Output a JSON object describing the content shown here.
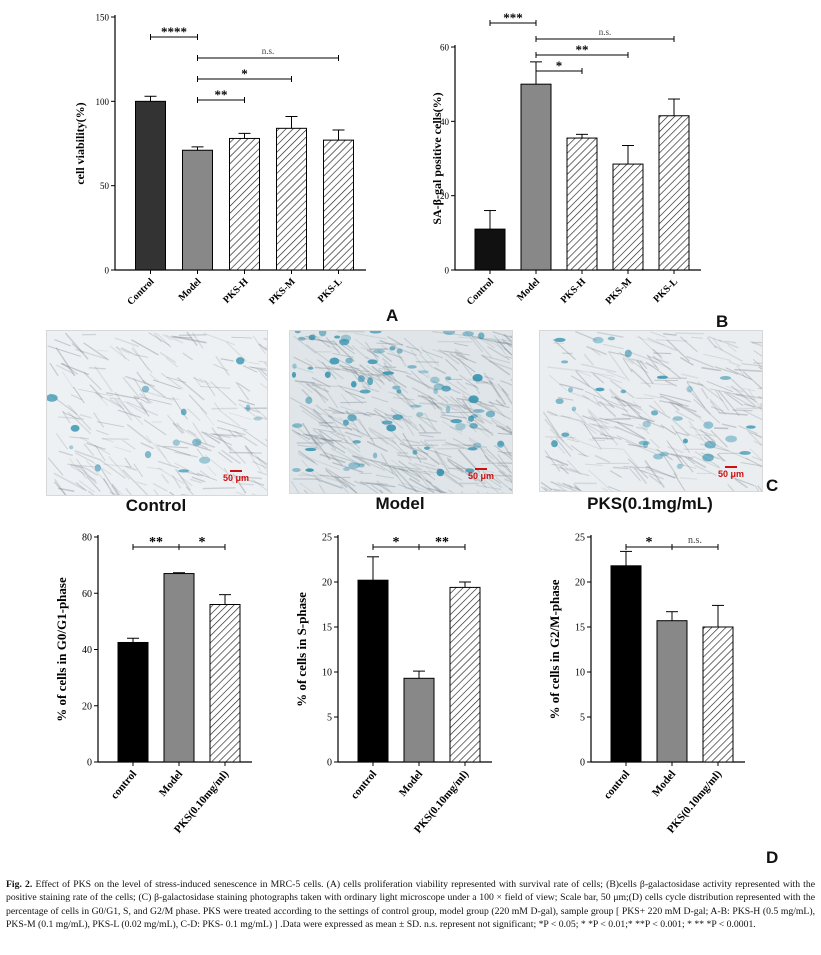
{
  "panel_letters": {
    "A": "A",
    "B": "B",
    "C": "C",
    "D": "D"
  },
  "micrographs": [
    {
      "label": "Control",
      "scale": "50 μm"
    },
    {
      "label": "Model",
      "scale": "50 μm"
    },
    {
      "label": "PKS(0.1mg/mL)",
      "scale": "50 μm"
    }
  ],
  "caption": {
    "fig_label": "Fig. 2.",
    "text": "Effect of PKS on the level of stress-induced senescence in MRC-5 cells. (A) cells proliferation viability represented with survival rate of cells; (B)cells β-galactosidase activity represented with the positive staining rate of the cells; (C) β-galactosidase staining photographs taken with ordinary light microscope under a 100 × field of view; Scale bar, 50 μm;(D) cells cycle distribution represented with the percentage of cells in G0/G1, S, and G2/M phase. PKS were treated according to the settings of control group, model group (220 mM D-gal), sample group [ PKS+ 220 mM D-gal; A-B: PKS-H (0.5 mg/mL), PKS-M (0.1 mg/mL), PKS-L (0.02 mg/mL), C-D: PKS- 0.1 mg/mL) ] .Data were expressed as mean ± SD. n.s. represent not significant; *P < 0.05; * *P < 0.01;* **P < 0.001; * ** *P < 0.0001."
  },
  "chart_data": [
    {
      "id": "A",
      "type": "bar",
      "categories": [
        "Control",
        "Model",
        "PKS-H",
        "PKS-M",
        "PKS-L"
      ],
      "values": [
        100,
        71,
        78,
        84,
        77
      ],
      "errors": [
        3,
        2,
        3,
        7,
        6
      ],
      "fills": [
        "#333333",
        "#888888",
        "hatch",
        "hatch",
        "hatch"
      ],
      "ylabel": "cell viability(%)",
      "ylim": [
        0,
        150
      ],
      "yticks": [
        0,
        50,
        100,
        150
      ],
      "significance": [
        {
          "from": 0,
          "to": 1,
          "label": "****"
        },
        {
          "from": 1,
          "to": 4,
          "label": "n.s."
        },
        {
          "from": 1,
          "to": 3,
          "label": "*"
        },
        {
          "from": 1,
          "to": 2,
          "label": "**"
        }
      ]
    },
    {
      "id": "B",
      "type": "bar",
      "categories": [
        "Control",
        "Model",
        "PKS-H",
        "PKS-M",
        "PKS-L"
      ],
      "values": [
        11,
        50,
        35.5,
        28.5,
        41.5
      ],
      "errors": [
        5,
        6,
        1,
        5,
        4.5
      ],
      "fills": [
        "#111111",
        "#888888",
        "hatch",
        "hatch",
        "hatch"
      ],
      "ylabel": "SA-β-gal positive cells(%)",
      "ylim": [
        0,
        60
      ],
      "yticks": [
        0,
        20,
        40,
        60
      ],
      "significance": [
        {
          "from": 0,
          "to": 1,
          "label": "***"
        },
        {
          "from": 1,
          "to": 4,
          "label": "n.s."
        },
        {
          "from": 1,
          "to": 3,
          "label": "**"
        },
        {
          "from": 1,
          "to": 2,
          "label": "*"
        }
      ]
    },
    {
      "id": "D1",
      "type": "bar",
      "categories": [
        "control",
        "Model",
        "PKS(0.10mg/ml)"
      ],
      "values": [
        42.5,
        67,
        56
      ],
      "errors": [
        1.5,
        0.3,
        3.5
      ],
      "fills": [
        "#000000",
        "#888888",
        "hatch"
      ],
      "ylabel": "% of cells in G0/G1-phase",
      "ylim": [
        0,
        80
      ],
      "yticks": [
        0,
        20,
        40,
        60,
        80
      ],
      "significance": [
        {
          "from": 0,
          "to": 1,
          "label": "**"
        },
        {
          "from": 1,
          "to": 2,
          "label": "*"
        }
      ]
    },
    {
      "id": "D2",
      "type": "bar",
      "categories": [
        "control",
        "Model",
        "PKS(0.10mg/ml)"
      ],
      "values": [
        20.2,
        9.3,
        19.4
      ],
      "errors": [
        2.6,
        0.8,
        0.6
      ],
      "fills": [
        "#000000",
        "#888888",
        "hatch"
      ],
      "ylabel": "% of cells in S-phase",
      "ylim": [
        0,
        25
      ],
      "yticks": [
        0,
        5,
        10,
        15,
        20,
        25
      ],
      "significance": [
        {
          "from": 0,
          "to": 1,
          "label": "*"
        },
        {
          "from": 1,
          "to": 2,
          "label": "**"
        }
      ]
    },
    {
      "id": "D3",
      "type": "bar",
      "categories": [
        "control",
        "Model",
        "PKS(0.10mg/ml)"
      ],
      "values": [
        21.8,
        15.7,
        15.0
      ],
      "errors": [
        1.6,
        1.0,
        2.4
      ],
      "fills": [
        "#000000",
        "#888888",
        "hatch"
      ],
      "ylabel": "% of cells in G2/M-phase",
      "ylim": [
        0,
        25
      ],
      "yticks": [
        0,
        5,
        10,
        15,
        20,
        25
      ],
      "significance": [
        {
          "from": 0,
          "to": 1,
          "label": "*"
        },
        {
          "from": 1,
          "to": 2,
          "label": "n.s."
        }
      ]
    }
  ]
}
